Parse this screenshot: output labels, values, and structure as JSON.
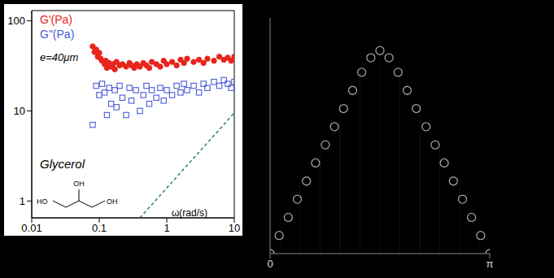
{
  "chart_data": [
    {
      "type": "scatter",
      "log": true,
      "xlabel": "ω(rad/s)",
      "annotations": [
        "e=40μm",
        "Glycerol"
      ],
      "molecule": [
        "HO",
        "OH",
        "OH"
      ],
      "legend": "upper left",
      "xlim": [
        0.01,
        10
      ],
      "ylim": [
        0.65,
        130
      ],
      "xticks": [
        0.01,
        0.1,
        1,
        10
      ],
      "yticks": [
        1,
        10,
        100
      ],
      "series": [
        {
          "name": "G'(Pa)",
          "color": "#e8241c",
          "marker": "circle",
          "x": [
            0.08,
            0.085,
            0.09,
            0.095,
            0.1,
            0.105,
            0.11,
            0.12,
            0.125,
            0.13,
            0.14,
            0.15,
            0.16,
            0.17,
            0.18,
            0.2,
            0.22,
            0.25,
            0.28,
            0.3,
            0.33,
            0.36,
            0.4,
            0.45,
            0.5,
            0.55,
            0.6,
            0.7,
            0.8,
            0.9,
            1.0,
            1.2,
            1.4,
            1.6,
            1.8,
            2.0,
            2.5,
            3.0,
            3.5,
            4.0,
            5.0,
            6.0,
            7.0,
            8.0,
            9.0,
            10
          ],
          "values": [
            52,
            45,
            48,
            40,
            44,
            38,
            36,
            33,
            36,
            30,
            34,
            31,
            33,
            29,
            35,
            32,
            33,
            31,
            34,
            32,
            30,
            33,
            31,
            34,
            32,
            30,
            35,
            33,
            31,
            36,
            33,
            35,
            32,
            37,
            34,
            38,
            35,
            37,
            34,
            38,
            36,
            40,
            37,
            39,
            36,
            40
          ]
        },
        {
          "name": "G\"(Pa)",
          "color": "#4a5ad8",
          "marker": "open_square",
          "x": [
            0.08,
            0.09,
            0.1,
            0.11,
            0.12,
            0.13,
            0.14,
            0.15,
            0.17,
            0.18,
            0.2,
            0.22,
            0.25,
            0.28,
            0.3,
            0.35,
            0.4,
            0.45,
            0.5,
            0.55,
            0.6,
            0.7,
            0.8,
            0.9,
            1.0,
            1.2,
            1.4,
            1.6,
            1.8,
            2.0,
            2.5,
            3.0,
            3.5,
            4.0,
            5.0,
            6.0,
            7.0,
            8.0,
            9.0,
            10
          ],
          "values": [
            7,
            19,
            15,
            20,
            16,
            9,
            18,
            12,
            17,
            11,
            19,
            14,
            9,
            18,
            13,
            17,
            10,
            15,
            19,
            12,
            17,
            14,
            18,
            13,
            17,
            15,
            19,
            16,
            20,
            17,
            19,
            16,
            20,
            18,
            21,
            19,
            22,
            20,
            18,
            21
          ]
        },
        {
          "color": "#2a8a5a",
          "marker": "none",
          "line_style": "dashed",
          "x": [
            0.4,
            10
          ],
          "values": [
            0.65,
            9.5
          ]
        }
      ]
    },
    {
      "type": "bar",
      "tick_labels": "x",
      "xlim": [
        0,
        3.14
      ],
      "ylim": [
        0,
        6.5
      ],
      "xticks": [
        {
          "value": 0,
          "label": "0"
        },
        {
          "value": 3.14,
          "label": "π"
        }
      ],
      "x": [
        0.143,
        0.428,
        0.714,
        1.0,
        1.285,
        1.571,
        1.856,
        2.142,
        2.427,
        2.713,
        2.998
      ],
      "values": [
        1,
        2,
        3,
        4,
        5,
        6,
        5,
        4,
        3,
        2,
        1
      ],
      "colors": [
        "#3b5bdb",
        "#4dabf7",
        "#a5d8c0",
        "#ffe066",
        "#ffa94d",
        "#d05fd8",
        "#ffa94d",
        "#ffe066",
        "#a5d8c0",
        "#4dabf7",
        "#3b5bdb"
      ],
      "series": [
        {
          "type": "scatter",
          "marker": "open_circle",
          "color": "#a0a0a0",
          "x": [
            0,
            0.13,
            0.26,
            0.39,
            0.52,
            0.65,
            0.79,
            0.92,
            1.05,
            1.18,
            1.31,
            1.44,
            1.57,
            1.7,
            1.83,
            1.96,
            2.09,
            2.23,
            2.36,
            2.49,
            2.62,
            2.75,
            2.88,
            3.01,
            3.14
          ],
          "values": [
            0,
            0.5,
            1,
            1.5,
            2,
            2.5,
            3,
            3.5,
            4,
            4.5,
            5,
            5.4,
            5.6,
            5.4,
            5,
            4.5,
            4,
            3.5,
            3,
            2.5,
            2,
            1.5,
            1,
            0.5,
            0
          ]
        }
      ]
    }
  ]
}
